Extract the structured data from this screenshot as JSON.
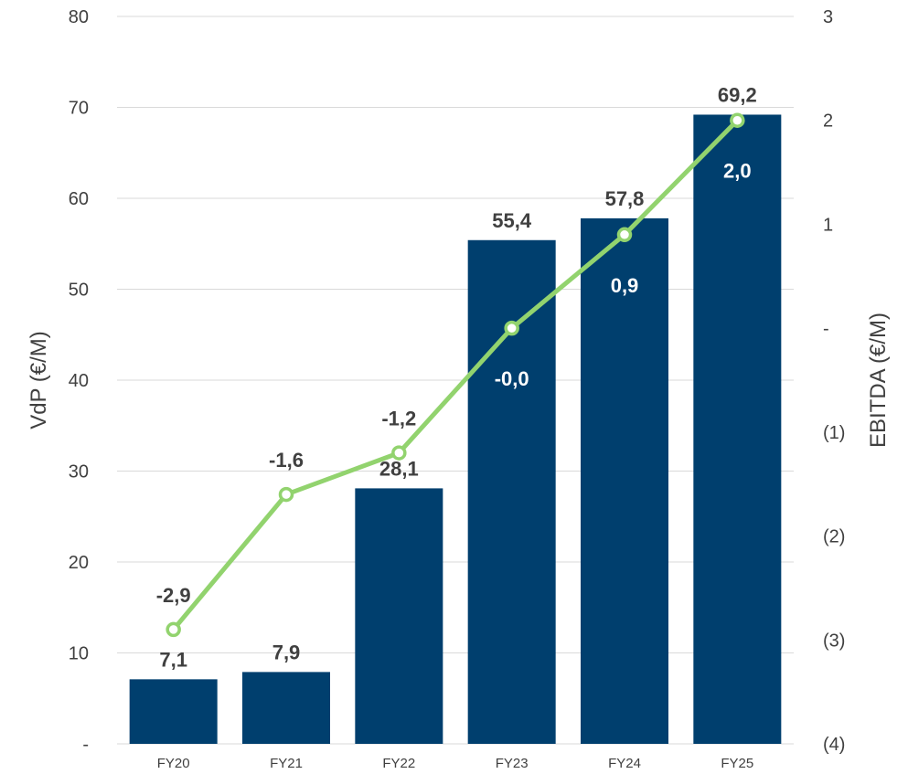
{
  "chart_data": {
    "type": "bar",
    "categories": [
      "FY20",
      "FY21",
      "FY22",
      "FY23",
      "FY24",
      "FY25"
    ],
    "series": [
      {
        "name": "",
        "type": "bar",
        "axis": "left",
        "values": [
          7.1,
          7.9,
          28.1,
          55.4,
          57.8,
          69.2
        ],
        "labels": [
          "7,1",
          "7,9",
          "28,1",
          "55,4",
          "57,8",
          "69,2"
        ],
        "color": "#003F6E"
      },
      {
        "name": "",
        "type": "line",
        "axis": "right",
        "values": [
          -2.9,
          -1.6,
          -1.2,
          -0.0,
          0.9,
          2.0
        ],
        "labels": [
          "-2,9",
          "-1,6",
          "-1,2",
          "-0,0",
          "0,9",
          "2,0"
        ],
        "color": "#92D36E"
      }
    ],
    "ylabel": "VdP (€/M)",
    "y2label": "EBITDA (€/M)",
    "ylim": [
      0,
      80
    ],
    "y2lim": [
      -4,
      3
    ],
    "yticks": [
      "-",
      "10",
      "20",
      "30",
      "40",
      "50",
      "60",
      "70",
      "80"
    ],
    "y2ticks": [
      "(4)",
      "(3)",
      "(2)",
      "(1)",
      "-",
      "1",
      "2",
      "3"
    ],
    "grid": true,
    "legend": "none"
  }
}
